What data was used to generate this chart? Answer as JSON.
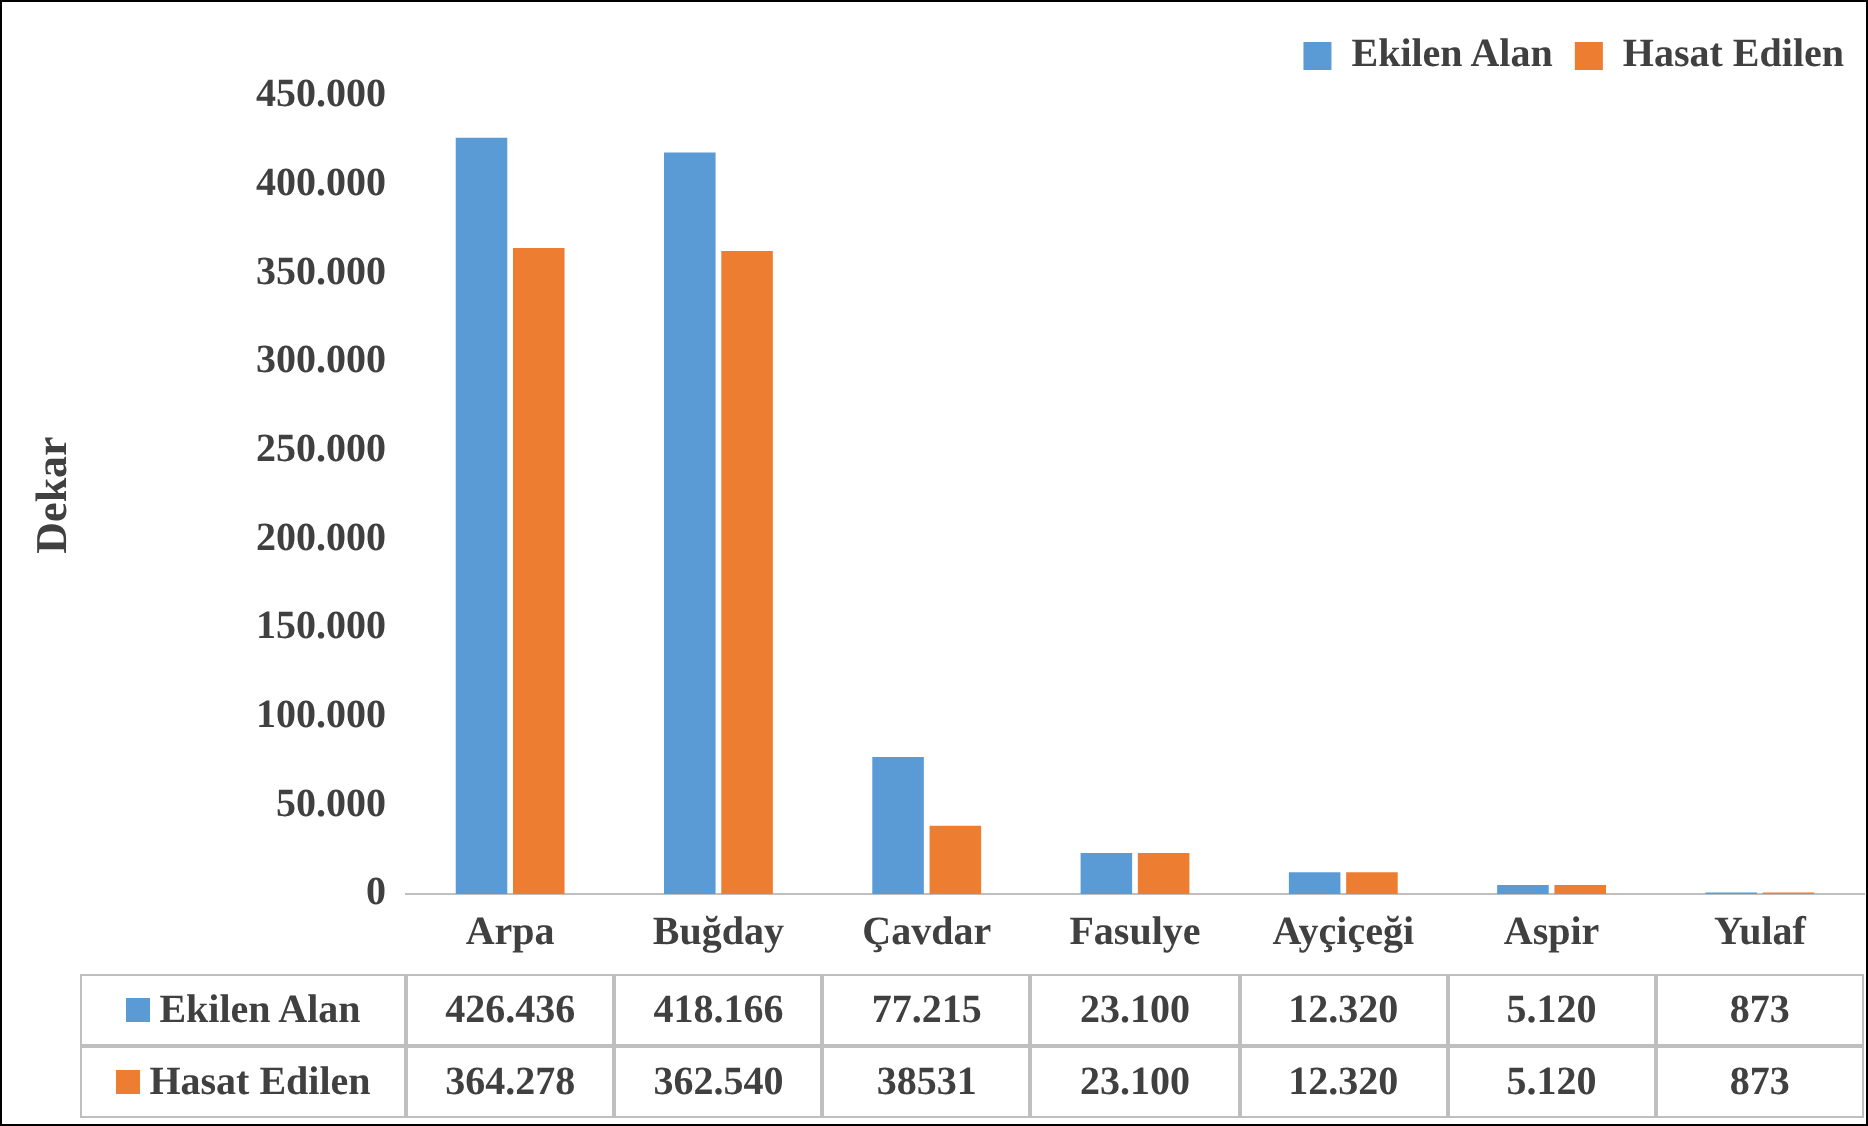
{
  "chart_data": {
    "type": "bar",
    "ylabel": "Dekar",
    "categories": [
      "Arpa",
      "Buğday",
      "Çavdar",
      "Fasulye",
      "Ayçiçeği",
      "Aspir",
      "Yulaf"
    ],
    "series": [
      {
        "name": "Ekilen Alan",
        "color": "#5b9bd5",
        "values": [
          426436,
          418166,
          77215,
          23100,
          12320,
          5120,
          873
        ],
        "value_labels": [
          "426.436",
          "418.166",
          "77.215",
          "23.100",
          "12.320",
          "5.120",
          "873"
        ]
      },
      {
        "name": "Hasat Edilen",
        "color": "#ed7d31",
        "values": [
          364278,
          362540,
          38531,
          23100,
          12320,
          5120,
          873
        ],
        "value_labels": [
          "364.278",
          "362.540",
          "38531",
          "23.100",
          "12.320",
          "5.120",
          "873"
        ]
      }
    ],
    "ylim": [
      0,
      450000
    ],
    "yticks": [
      0,
      {
        "value": 50000,
        "label": "50.000"
      },
      {
        "value": 100000,
        "label": "100.000"
      },
      {
        "value": 150000,
        "label": "150.000"
      },
      {
        "value": 200000,
        "label": "200.000"
      },
      {
        "value": 250000,
        "label": "250.000"
      },
      {
        "value": 300000,
        "label": "300.000"
      },
      {
        "value": 350000,
        "label": "350.000"
      },
      {
        "value": 400000,
        "label": "400.000"
      },
      {
        "value": 450000,
        "label": "450.000"
      }
    ],
    "legend": "top right"
  }
}
